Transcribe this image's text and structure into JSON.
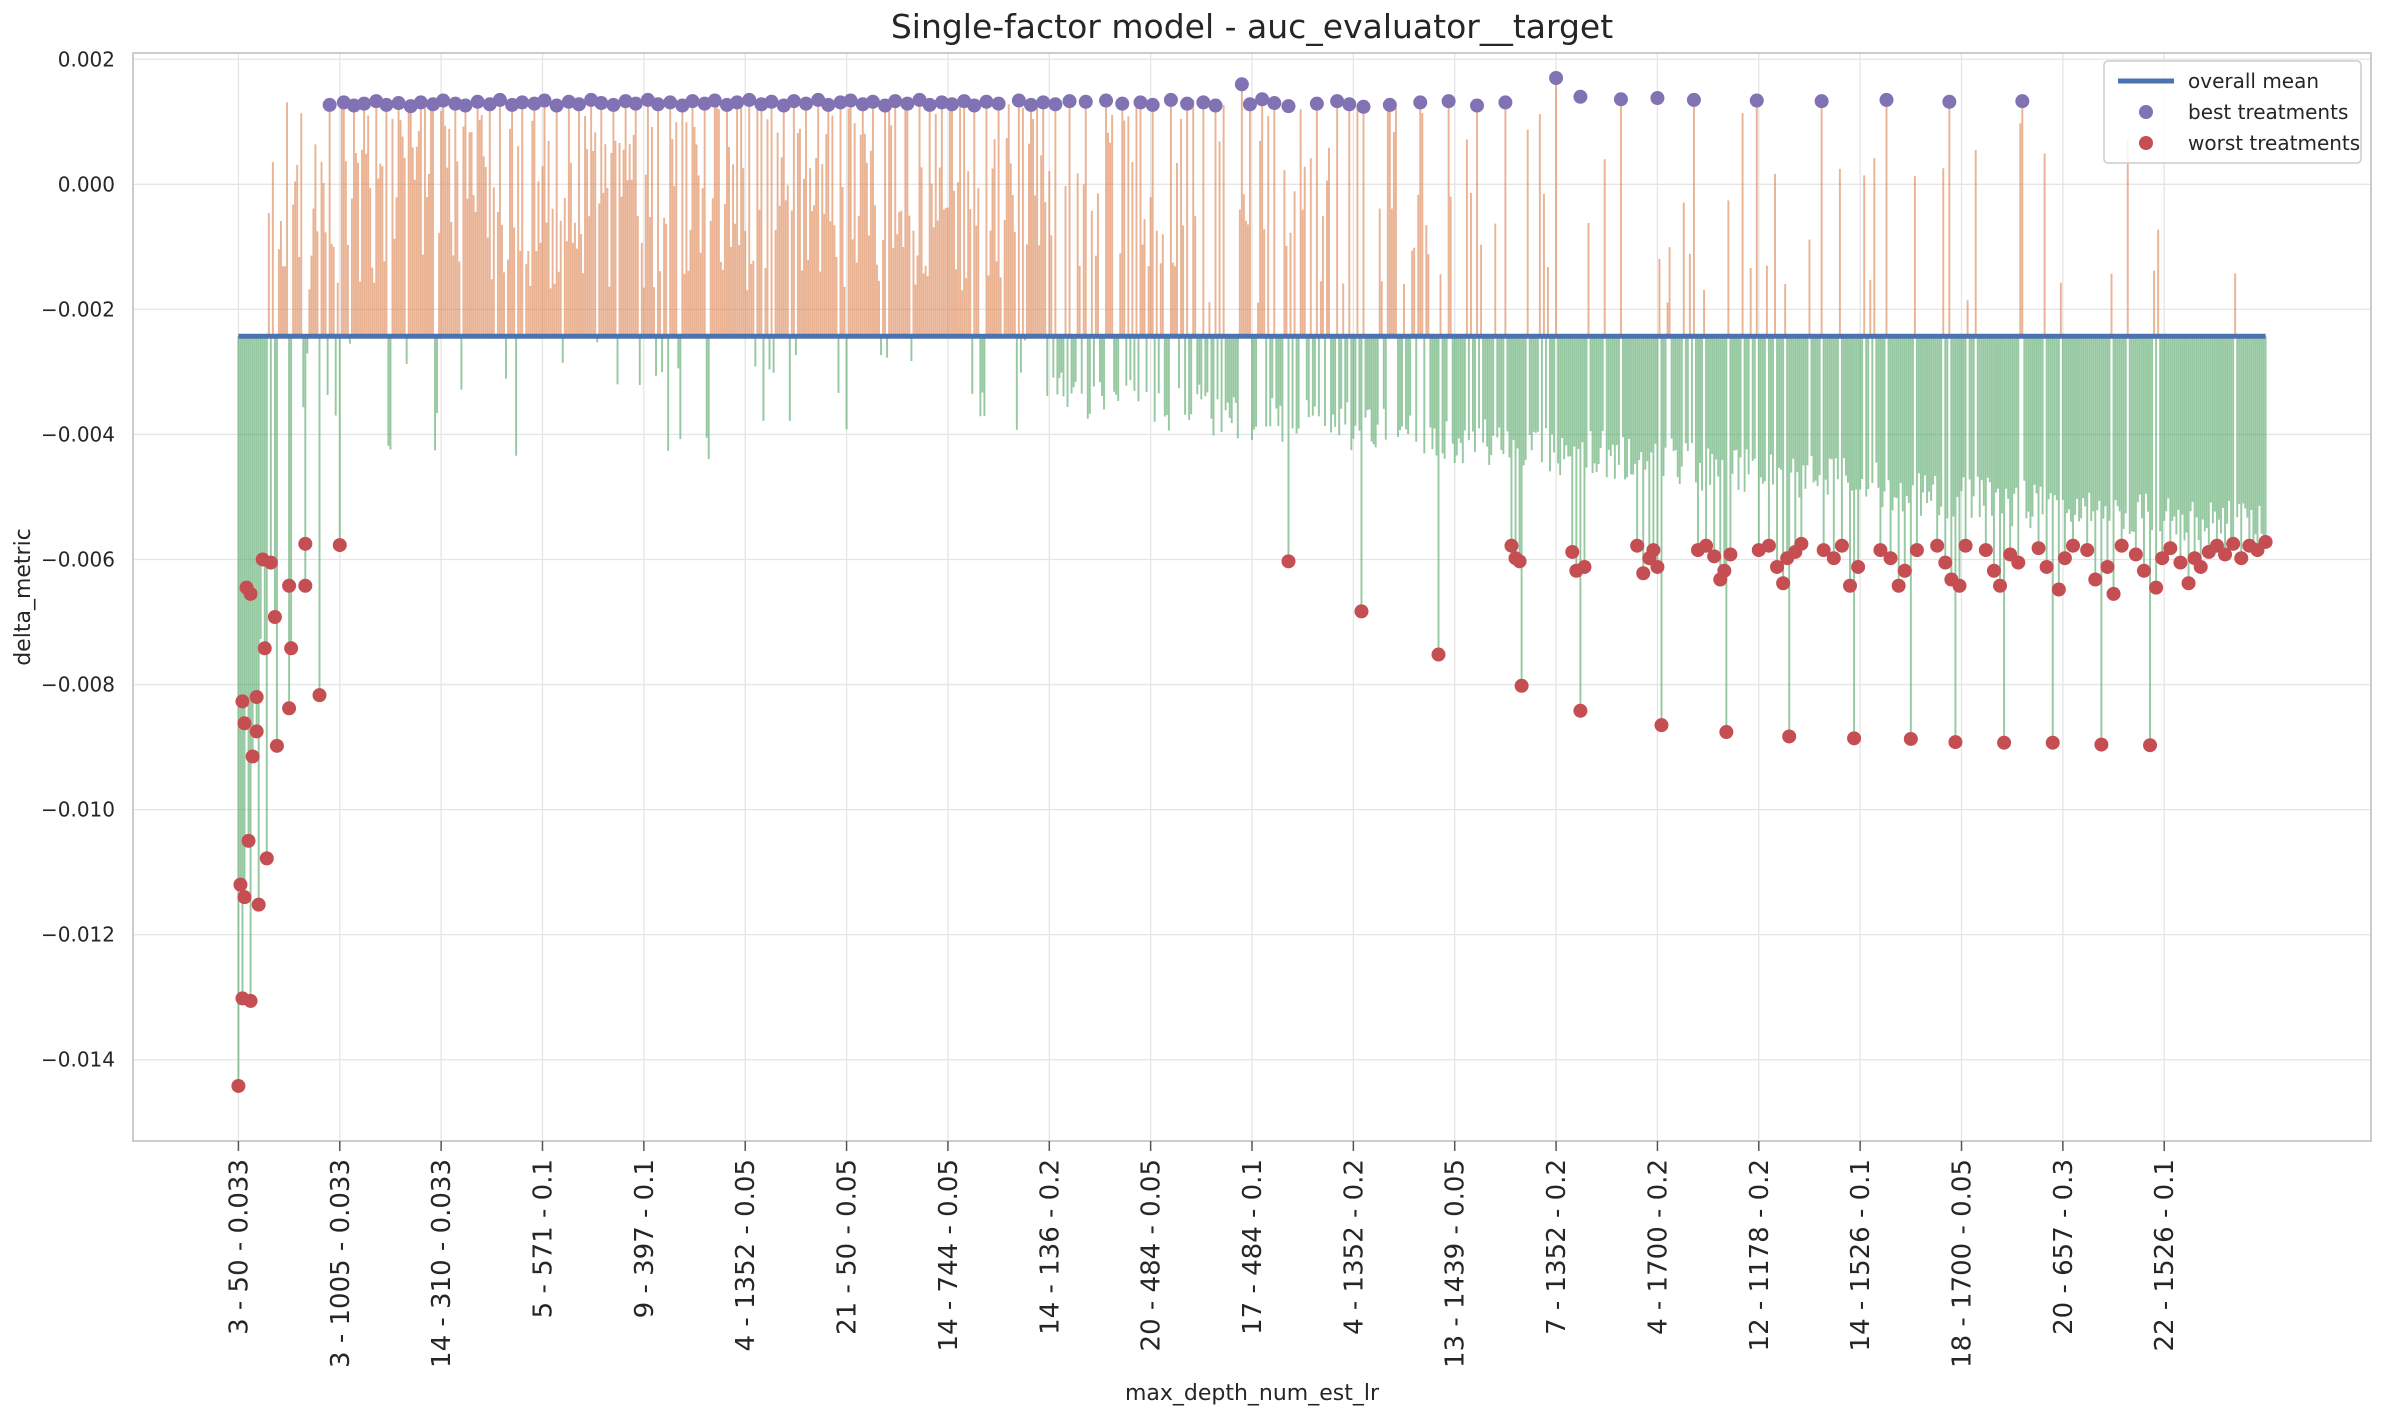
{
  "chart_data": {
    "type": "bar",
    "title": "Single-factor model - auc_evaluator__target",
    "xlabel": "max_depth_num_est_lr",
    "ylabel": "delta_metric",
    "ylim": [
      -0.0153,
      0.0021
    ],
    "grid": true,
    "legend_placement": "top-right",
    "baseline": -0.00243,
    "yticks": [
      0.002,
      0.0,
      -0.002,
      -0.004,
      -0.006,
      -0.008,
      -0.01,
      -0.012,
      -0.014
    ],
    "ytick_labels": [
      "0.002",
      "0.000",
      "−0.002",
      "−0.004",
      "−0.006",
      "−0.008",
      "−0.010",
      "−0.012",
      "−0.014"
    ],
    "xtick_labels": [
      "3 - 50 - 0.033",
      "3 - 1005 - 0.033",
      "14 - 310 - 0.033",
      "5 - 571 - 0.1",
      "9 - 397 - 0.1",
      "4 - 1352 - 0.05",
      "21 - 50 - 0.05",
      "14 - 744 - 0.05",
      "14 - 136 - 0.2",
      "20 - 484 - 0.05",
      "17 - 484 - 0.1",
      "4 - 1352 - 0.2",
      "13 - 1439 - 0.05",
      "7 - 1352 - 0.2",
      "4 - 1700 - 0.2",
      "12 - 1178 - 0.2",
      "14 - 1526 - 0.1",
      "18 - 1700 - 0.05",
      "20 - 657 - 0.3",
      "22 - 1526 - 0.1"
    ],
    "xtick_positions": [
      0,
      50,
      100,
      150,
      200,
      250,
      300,
      350,
      400,
      450,
      500,
      550,
      600,
      650,
      700,
      750,
      800,
      850,
      900,
      950
    ],
    "xlim": [
      -52,
      1052
    ],
    "treatment_count": 1001,
    "positive_band_range": [
      12,
      400
    ],
    "series": [
      {
        "name": "overall mean",
        "color": "#4c72b0"
      },
      {
        "name": "best treatments",
        "color": "#8172b3"
      },
      {
        "name": "worst treatments",
        "color": "#c44e52"
      }
    ],
    "bar_colors": {
      "above_mean": "#dd8452",
      "below_mean": "#55a868"
    },
    "best_points": [
      {
        "x": 45,
        "y": 0.00127
      },
      {
        "x": 52,
        "y": 0.00131
      },
      {
        "x": 57,
        "y": 0.00126
      },
      {
        "x": 62,
        "y": 0.00129
      },
      {
        "x": 68,
        "y": 0.00133
      },
      {
        "x": 73,
        "y": 0.00127
      },
      {
        "x": 79,
        "y": 0.0013
      },
      {
        "x": 85,
        "y": 0.00125
      },
      {
        "x": 90,
        "y": 0.00131
      },
      {
        "x": 96,
        "y": 0.00128
      },
      {
        "x": 101,
        "y": 0.00134
      },
      {
        "x": 107,
        "y": 0.00129
      },
      {
        "x": 112,
        "y": 0.00126
      },
      {
        "x": 118,
        "y": 0.00132
      },
      {
        "x": 124,
        "y": 0.00128
      },
      {
        "x": 129,
        "y": 0.00135
      },
      {
        "x": 135,
        "y": 0.00127
      },
      {
        "x": 140,
        "y": 0.00131
      },
      {
        "x": 146,
        "y": 0.00129
      },
      {
        "x": 151,
        "y": 0.00134
      },
      {
        "x": 157,
        "y": 0.00126
      },
      {
        "x": 163,
        "y": 0.00132
      },
      {
        "x": 168,
        "y": 0.00128
      },
      {
        "x": 174,
        "y": 0.00135
      },
      {
        "x": 179,
        "y": 0.0013
      },
      {
        "x": 185,
        "y": 0.00127
      },
      {
        "x": 191,
        "y": 0.00133
      },
      {
        "x": 196,
        "y": 0.00129
      },
      {
        "x": 202,
        "y": 0.00135
      },
      {
        "x": 207,
        "y": 0.00128
      },
      {
        "x": 213,
        "y": 0.00131
      },
      {
        "x": 219,
        "y": 0.00126
      },
      {
        "x": 224,
        "y": 0.00133
      },
      {
        "x": 230,
        "y": 0.00129
      },
      {
        "x": 235,
        "y": 0.00134
      },
      {
        "x": 241,
        "y": 0.00127
      },
      {
        "x": 246,
        "y": 0.00131
      },
      {
        "x": 252,
        "y": 0.00135
      },
      {
        "x": 258,
        "y": 0.00128
      },
      {
        "x": 263,
        "y": 0.00132
      },
      {
        "x": 269,
        "y": 0.00126
      },
      {
        "x": 274,
        "y": 0.00133
      },
      {
        "x": 280,
        "y": 0.00129
      },
      {
        "x": 286,
        "y": 0.00135
      },
      {
        "x": 291,
        "y": 0.00127
      },
      {
        "x": 297,
        "y": 0.00131
      },
      {
        "x": 302,
        "y": 0.00134
      },
      {
        "x": 308,
        "y": 0.00128
      },
      {
        "x": 313,
        "y": 0.00132
      },
      {
        "x": 319,
        "y": 0.00126
      },
      {
        "x": 324,
        "y": 0.00133
      },
      {
        "x": 330,
        "y": 0.00129
      },
      {
        "x": 336,
        "y": 0.00135
      },
      {
        "x": 341,
        "y": 0.00127
      },
      {
        "x": 347,
        "y": 0.00131
      },
      {
        "x": 352,
        "y": 0.00128
      },
      {
        "x": 358,
        "y": 0.00133
      },
      {
        "x": 363,
        "y": 0.00126
      },
      {
        "x": 369,
        "y": 0.00132
      },
      {
        "x": 375,
        "y": 0.00129
      },
      {
        "x": 385,
        "y": 0.00134
      },
      {
        "x": 391,
        "y": 0.00127
      },
      {
        "x": 397,
        "y": 0.00131
      },
      {
        "x": 403,
        "y": 0.00128
      },
      {
        "x": 410,
        "y": 0.00133
      },
      {
        "x": 418,
        "y": 0.00132
      },
      {
        "x": 428,
        "y": 0.00134
      },
      {
        "x": 436,
        "y": 0.00129
      },
      {
        "x": 445,
        "y": 0.00131
      },
      {
        "x": 451,
        "y": 0.00127
      },
      {
        "x": 460,
        "y": 0.00135
      },
      {
        "x": 468,
        "y": 0.00129
      },
      {
        "x": 476,
        "y": 0.00131
      },
      {
        "x": 482,
        "y": 0.00126
      },
      {
        "x": 495,
        "y": 0.0016
      },
      {
        "x": 499,
        "y": 0.00128
      },
      {
        "x": 505,
        "y": 0.00136
      },
      {
        "x": 511,
        "y": 0.0013
      },
      {
        "x": 518,
        "y": 0.00125
      },
      {
        "x": 532,
        "y": 0.00129
      },
      {
        "x": 542,
        "y": 0.00133
      },
      {
        "x": 548,
        "y": 0.00128
      },
      {
        "x": 555,
        "y": 0.00124
      },
      {
        "x": 568,
        "y": 0.00127
      },
      {
        "x": 583,
        "y": 0.00131
      },
      {
        "x": 597,
        "y": 0.00133
      },
      {
        "x": 611,
        "y": 0.00126
      },
      {
        "x": 625,
        "y": 0.00131
      },
      {
        "x": 650,
        "y": 0.0017
      },
      {
        "x": 662,
        "y": 0.0014
      },
      {
        "x": 682,
        "y": 0.00136
      },
      {
        "x": 700,
        "y": 0.00138
      },
      {
        "x": 718,
        "y": 0.00135
      },
      {
        "x": 749,
        "y": 0.00134
      },
      {
        "x": 781,
        "y": 0.00133
      },
      {
        "x": 813,
        "y": 0.00135
      },
      {
        "x": 844,
        "y": 0.00132
      },
      {
        "x": 880,
        "y": 0.00133
      }
    ],
    "worst_points": [
      {
        "x": 0,
        "y": -0.01442
      },
      {
        "x": 1,
        "y": -0.0112
      },
      {
        "x": 2,
        "y": -0.00827
      },
      {
        "x": 2,
        "y": -0.01302
      },
      {
        "x": 3,
        "y": -0.00862
      },
      {
        "x": 3,
        "y": -0.0114
      },
      {
        "x": 4,
        "y": -0.00645
      },
      {
        "x": 5,
        "y": -0.0105
      },
      {
        "x": 6,
        "y": -0.00655
      },
      {
        "x": 6,
        "y": -0.01306
      },
      {
        "x": 7,
        "y": -0.00915
      },
      {
        "x": 9,
        "y": -0.00875
      },
      {
        "x": 9,
        "y": -0.0082
      },
      {
        "x": 10,
        "y": -0.01152
      },
      {
        "x": 12,
        "y": -0.006
      },
      {
        "x": 13,
        "y": -0.00742
      },
      {
        "x": 14,
        "y": -0.01078
      },
      {
        "x": 16,
        "y": -0.00605
      },
      {
        "x": 18,
        "y": -0.00692
      },
      {
        "x": 19,
        "y": -0.00898
      },
      {
        "x": 25,
        "y": -0.00838
      },
      {
        "x": 25,
        "y": -0.00642
      },
      {
        "x": 26,
        "y": -0.00742
      },
      {
        "x": 33,
        "y": -0.00575
      },
      {
        "x": 33,
        "y": -0.00642
      },
      {
        "x": 40,
        "y": -0.00817
      },
      {
        "x": 50,
        "y": -0.00577
      },
      {
        "x": 518,
        "y": -0.00603
      },
      {
        "x": 554,
        "y": -0.00683
      },
      {
        "x": 592,
        "y": -0.00752
      },
      {
        "x": 628,
        "y": -0.00578
      },
      {
        "x": 630,
        "y": -0.00598
      },
      {
        "x": 632,
        "y": -0.00603
      },
      {
        "x": 633,
        "y": -0.00802
      },
      {
        "x": 658,
        "y": -0.00588
      },
      {
        "x": 660,
        "y": -0.00618
      },
      {
        "x": 662,
        "y": -0.00842
      },
      {
        "x": 664,
        "y": -0.00612
      },
      {
        "x": 690,
        "y": -0.00578
      },
      {
        "x": 693,
        "y": -0.00622
      },
      {
        "x": 696,
        "y": -0.00598
      },
      {
        "x": 698,
        "y": -0.00585
      },
      {
        "x": 700,
        "y": -0.00612
      },
      {
        "x": 702,
        "y": -0.00865
      },
      {
        "x": 720,
        "y": -0.00585
      },
      {
        "x": 724,
        "y": -0.00578
      },
      {
        "x": 728,
        "y": -0.00595
      },
      {
        "x": 731,
        "y": -0.00632
      },
      {
        "x": 733,
        "y": -0.00618
      },
      {
        "x": 734,
        "y": -0.00876
      },
      {
        "x": 736,
        "y": -0.00592
      },
      {
        "x": 750,
        "y": -0.00585
      },
      {
        "x": 755,
        "y": -0.00578
      },
      {
        "x": 759,
        "y": -0.00612
      },
      {
        "x": 762,
        "y": -0.00638
      },
      {
        "x": 764,
        "y": -0.00598
      },
      {
        "x": 765,
        "y": -0.00883
      },
      {
        "x": 768,
        "y": -0.00588
      },
      {
        "x": 771,
        "y": -0.00575
      },
      {
        "x": 782,
        "y": -0.00585
      },
      {
        "x": 787,
        "y": -0.00598
      },
      {
        "x": 791,
        "y": -0.00578
      },
      {
        "x": 795,
        "y": -0.00642
      },
      {
        "x": 797,
        "y": -0.00886
      },
      {
        "x": 799,
        "y": -0.00612
      },
      {
        "x": 810,
        "y": -0.00585
      },
      {
        "x": 815,
        "y": -0.00598
      },
      {
        "x": 819,
        "y": -0.00642
      },
      {
        "x": 822,
        "y": -0.00618
      },
      {
        "x": 825,
        "y": -0.00887
      },
      {
        "x": 828,
        "y": -0.00585
      },
      {
        "x": 838,
        "y": -0.00578
      },
      {
        "x": 842,
        "y": -0.00605
      },
      {
        "x": 845,
        "y": -0.00632
      },
      {
        "x": 847,
        "y": -0.00892
      },
      {
        "x": 849,
        "y": -0.00642
      },
      {
        "x": 852,
        "y": -0.00578
      },
      {
        "x": 862,
        "y": -0.00585
      },
      {
        "x": 866,
        "y": -0.00618
      },
      {
        "x": 869,
        "y": -0.00642
      },
      {
        "x": 871,
        "y": -0.00893
      },
      {
        "x": 874,
        "y": -0.00592
      },
      {
        "x": 878,
        "y": -0.00605
      },
      {
        "x": 888,
        "y": -0.00582
      },
      {
        "x": 892,
        "y": -0.00612
      },
      {
        "x": 895,
        "y": -0.00893
      },
      {
        "x": 898,
        "y": -0.00648
      },
      {
        "x": 901,
        "y": -0.00598
      },
      {
        "x": 905,
        "y": -0.00578
      },
      {
        "x": 912,
        "y": -0.00585
      },
      {
        "x": 916,
        "y": -0.00632
      },
      {
        "x": 919,
        "y": -0.00896
      },
      {
        "x": 922,
        "y": -0.00612
      },
      {
        "x": 925,
        "y": -0.00655
      },
      {
        "x": 929,
        "y": -0.00578
      },
      {
        "x": 936,
        "y": -0.00592
      },
      {
        "x": 940,
        "y": -0.00618
      },
      {
        "x": 943,
        "y": -0.00897
      },
      {
        "x": 946,
        "y": -0.00645
      },
      {
        "x": 949,
        "y": -0.00598
      },
      {
        "x": 953,
        "y": -0.00582
      },
      {
        "x": 958,
        "y": -0.00605
      },
      {
        "x": 962,
        "y": -0.00638
      },
      {
        "x": 965,
        "y": -0.00598
      },
      {
        "x": 968,
        "y": -0.00612
      },
      {
        "x": 972,
        "y": -0.00588
      },
      {
        "x": 976,
        "y": -0.00578
      },
      {
        "x": 980,
        "y": -0.00592
      },
      {
        "x": 984,
        "y": -0.00575
      },
      {
        "x": 988,
        "y": -0.00598
      },
      {
        "x": 992,
        "y": -0.00578
      },
      {
        "x": 996,
        "y": -0.00585
      },
      {
        "x": 1000,
        "y": -0.00572
      }
    ]
  }
}
